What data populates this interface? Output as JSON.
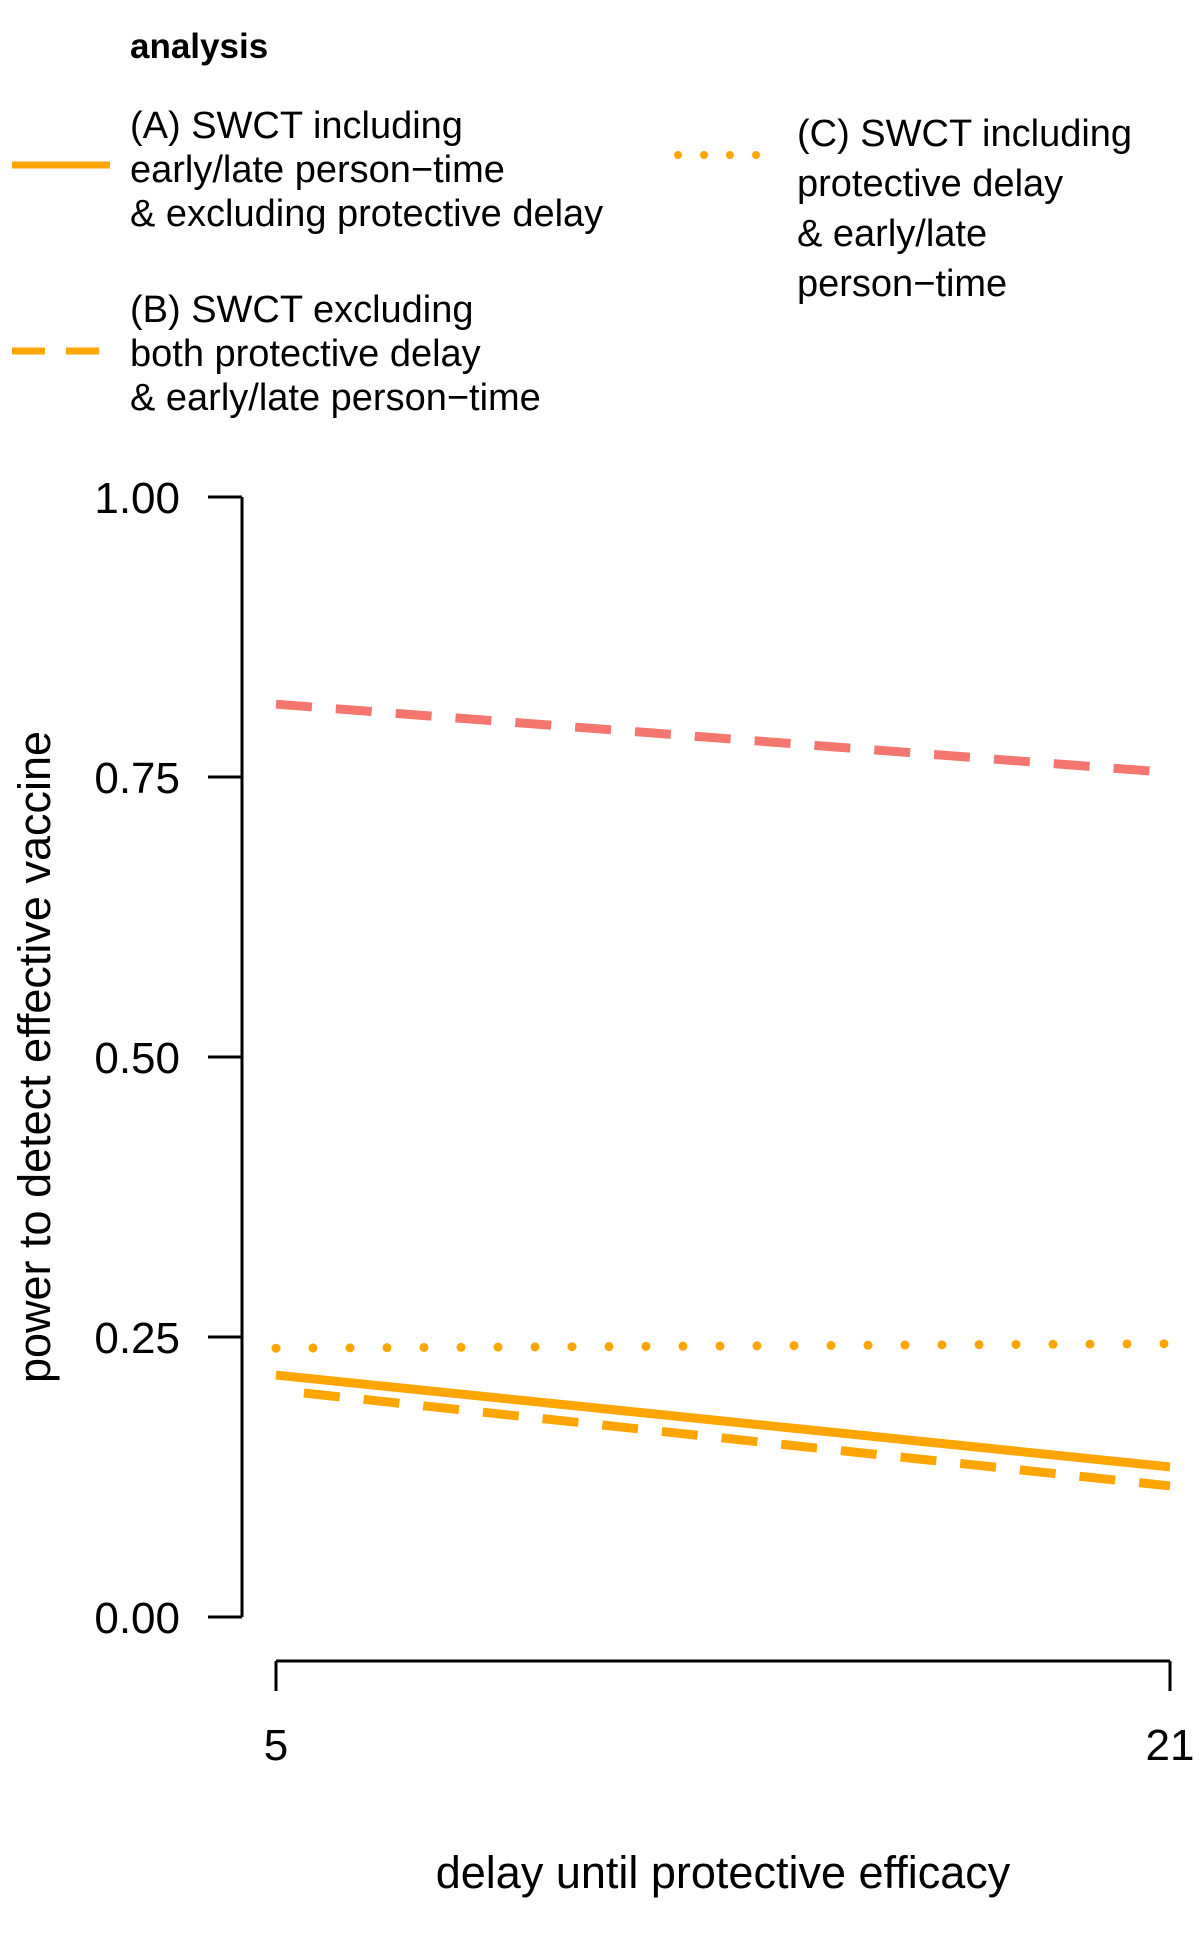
{
  "chart_data": {
    "type": "line",
    "legend": {
      "title": "analysis",
      "placement": "top",
      "entries": [
        {
          "key": "A",
          "style": "solid",
          "lines": [
            "(A) SWCT including",
            "early/late person−time",
            "& excluding protective delay"
          ]
        },
        {
          "key": "B",
          "style": "dashed",
          "lines": [
            "(B) SWCT excluding",
            "both protective delay",
            "& early/late person−time"
          ]
        },
        {
          "key": "C",
          "style": "dotted",
          "lines": [
            "(C) SWCT including",
            "protective delay",
            "& early/late",
            "person−time"
          ]
        }
      ]
    },
    "x": [
      5,
      21
    ],
    "x_ticks": [
      "5",
      "21"
    ],
    "xlim": [
      5,
      21
    ],
    "xlabel": "delay until protective efficacy",
    "ylabel": "power to detect effective vaccine",
    "ylim": [
      0,
      1
    ],
    "y_ticks": [
      "0.00",
      "0.25",
      "0.50",
      "0.75",
      "1.00"
    ],
    "grid": false,
    "series": [
      {
        "key": "A",
        "style": "solid",
        "color": "#FFA500",
        "x": [
          5,
          21
        ],
        "values": [
          0.216,
          0.134
        ]
      },
      {
        "key": "B",
        "style": "dashed",
        "color": "#FFA500",
        "x": [
          5.5,
          21
        ],
        "values": [
          0.2,
          0.117
        ]
      },
      {
        "key": "C",
        "style": "dotted",
        "color": "#FFA500",
        "x": [
          5,
          21
        ],
        "values": [
          0.24,
          0.244
        ]
      },
      {
        "key": "B",
        "style": "dashed",
        "color": "#F4766E",
        "x": [
          5,
          21
        ],
        "values": [
          0.815,
          0.754
        ]
      }
    ]
  }
}
